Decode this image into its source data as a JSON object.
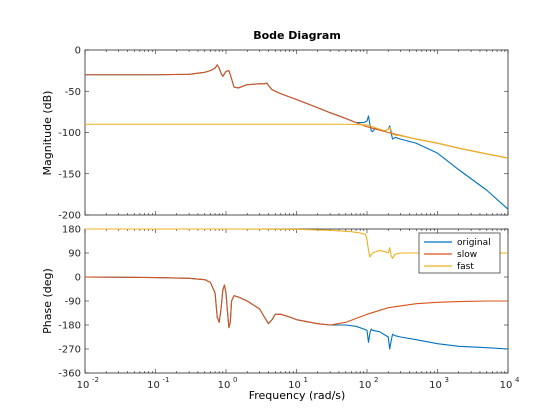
{
  "chart_data": [
    {
      "type": "line",
      "title": "Bode Diagram",
      "ylabel": "Magnitude (dB)",
      "xscale": "log",
      "xlim": [
        0.01,
        10000
      ],
      "ylim": [
        -200,
        0
      ],
      "y_ticks": [
        "0",
        "-50",
        "-100",
        "-150",
        "-200"
      ],
      "y_tick_values": [
        0,
        -50,
        -100,
        -150,
        -200
      ],
      "series": [
        {
          "name": "original",
          "color": "#0072BD",
          "x": [
            0.01,
            0.1,
            0.3,
            0.5,
            0.6,
            0.7,
            0.75,
            0.8,
            0.85,
            0.9,
            1.0,
            1.1,
            1.15,
            1.2,
            1.3,
            1.5,
            2.0,
            3.0,
            3.5,
            3.8,
            4.0,
            4.5,
            5,
            6,
            8,
            10,
            20,
            30,
            50,
            70,
            90,
            100,
            105,
            110,
            115,
            120,
            130,
            150,
            180,
            200,
            210,
            220,
            230,
            250,
            300,
            500,
            1000,
            2000,
            5000,
            10000
          ],
          "y": [
            -30,
            -30,
            -29.5,
            -27,
            -25,
            -22,
            -18,
            -22,
            -28,
            -32,
            -26,
            -25,
            -30,
            -35,
            -45,
            -46,
            -42,
            -41,
            -41,
            -40,
            -43,
            -48,
            -50,
            -53,
            -57,
            -60,
            -70,
            -76,
            -83,
            -88,
            -88,
            -86,
            -80,
            -90,
            -98,
            -99,
            -95,
            -96,
            -98,
            -96,
            -92,
            -100,
            -108,
            -106,
            -108,
            -113,
            -125,
            -145,
            -170,
            -193
          ]
        },
        {
          "name": "slow",
          "color": "#D95319",
          "x": [
            0.01,
            0.1,
            0.3,
            0.5,
            0.6,
            0.7,
            0.75,
            0.8,
            0.85,
            0.9,
            1.0,
            1.1,
            1.15,
            1.2,
            1.3,
            1.5,
            2.0,
            3.0,
            3.5,
            3.8,
            4.0,
            4.5,
            5,
            6,
            8,
            10,
            20,
            30,
            50,
            70,
            100,
            200,
            500,
            1000,
            2000,
            5000,
            10000
          ],
          "y": [
            -30,
            -30,
            -29.5,
            -27,
            -25,
            -22,
            -18,
            -22,
            -28,
            -32,
            -26,
            -25,
            -30,
            -35,
            -45,
            -46,
            -42,
            -41,
            -41,
            -40,
            -43,
            -48,
            -50,
            -53,
            -57,
            -60,
            -70,
            -76,
            -83,
            -88,
            -93,
            -100,
            -108,
            -113,
            -119,
            -126,
            -131
          ]
        },
        {
          "name": "fast",
          "color": "#EDB120",
          "x": [
            0.01,
            1,
            10,
            50,
            80,
            100,
            120,
            150,
            180,
            200,
            210,
            220,
            230,
            250,
            300,
            500,
            1000,
            2000,
            5000,
            10000
          ],
          "y": [
            -90,
            -90,
            -90,
            -90,
            -90.5,
            -91,
            -93,
            -96,
            -98,
            -96,
            -94,
            -97,
            -102,
            -103,
            -104,
            -108,
            -113,
            -119,
            -126,
            -131
          ]
        }
      ]
    },
    {
      "type": "line",
      "xlabel": "Frequency  (rad/s)",
      "ylabel": "Phase (deg)",
      "xscale": "log",
      "xlim": [
        0.01,
        10000
      ],
      "ylim": [
        -360,
        180
      ],
      "x_ticks": [
        "10",
        "10",
        "10",
        "10",
        "10",
        "10",
        "10"
      ],
      "x_tick_exponents": [
        "-2",
        "-1",
        "0",
        "1",
        "2",
        "3",
        "4"
      ],
      "x_tick_values": [
        0.01,
        0.1,
        1,
        10,
        100,
        1000,
        10000
      ],
      "y_ticks": [
        "180",
        "90",
        "0",
        "-90",
        "-180",
        "-270",
        "-360"
      ],
      "y_tick_values": [
        180,
        90,
        0,
        -90,
        -180,
        -270,
        -360
      ],
      "legend": {
        "position": "top-right",
        "entries": [
          "original",
          "slow",
          "fast"
        ]
      },
      "series": [
        {
          "name": "original",
          "color": "#0072BD",
          "x": [
            0.01,
            0.1,
            0.3,
            0.5,
            0.6,
            0.7,
            0.75,
            0.8,
            0.85,
            0.9,
            0.95,
            1.0,
            1.05,
            1.1,
            1.15,
            1.2,
            1.3,
            1.5,
            2.0,
            3.0,
            3.5,
            4.0,
            4.5,
            5.0,
            6.0,
            8.0,
            10,
            20,
            30,
            50,
            70,
            90,
            100,
            105,
            110,
            115,
            120,
            150,
            200,
            210,
            220,
            230,
            250,
            300,
            500,
            1000,
            2000,
            5000,
            10000
          ],
          "y": [
            0,
            -2,
            -5,
            -10,
            -20,
            -60,
            -150,
            -170,
            -120,
            -50,
            -30,
            -60,
            -130,
            -190,
            -170,
            -90,
            -70,
            -75,
            -90,
            -120,
            -150,
            -175,
            -160,
            -140,
            -140,
            -150,
            -160,
            -175,
            -180,
            -180,
            -185,
            -195,
            -200,
            -245,
            -210,
            -195,
            -200,
            -205,
            -225,
            -270,
            -240,
            -215,
            -220,
            -225,
            -235,
            -250,
            -260,
            -265,
            -270
          ]
        },
        {
          "name": "slow",
          "color": "#D95319",
          "x": [
            0.01,
            0.1,
            0.3,
            0.5,
            0.6,
            0.7,
            0.75,
            0.8,
            0.85,
            0.9,
            0.95,
            1.0,
            1.05,
            1.1,
            1.15,
            1.2,
            1.3,
            1.5,
            2.0,
            3.0,
            3.5,
            4.0,
            4.5,
            5.0,
            6.0,
            8.0,
            10,
            20,
            30,
            50,
            70,
            100,
            200,
            500,
            1000,
            2000,
            5000,
            10000
          ],
          "y": [
            0,
            -2,
            -5,
            -10,
            -20,
            -60,
            -150,
            -170,
            -120,
            -50,
            -30,
            -60,
            -130,
            -190,
            -170,
            -90,
            -70,
            -75,
            -90,
            -120,
            -150,
            -175,
            -160,
            -140,
            -140,
            -150,
            -160,
            -175,
            -180,
            -170,
            -155,
            -140,
            -115,
            -100,
            -95,
            -92,
            -90,
            -90
          ]
        },
        {
          "name": "fast",
          "color": "#EDB120",
          "x": [
            0.01,
            1,
            10,
            30,
            60,
            80,
            95,
            100,
            105,
            110,
            120,
            150,
            180,
            200,
            210,
            220,
            230,
            250,
            300,
            500,
            1000,
            10000
          ],
          "y": [
            180,
            180,
            179,
            175,
            170,
            165,
            160,
            140,
            100,
            75,
            90,
            100,
            95,
            90,
            110,
            80,
            70,
            85,
            90,
            90,
            90,
            90
          ]
        }
      ]
    }
  ]
}
